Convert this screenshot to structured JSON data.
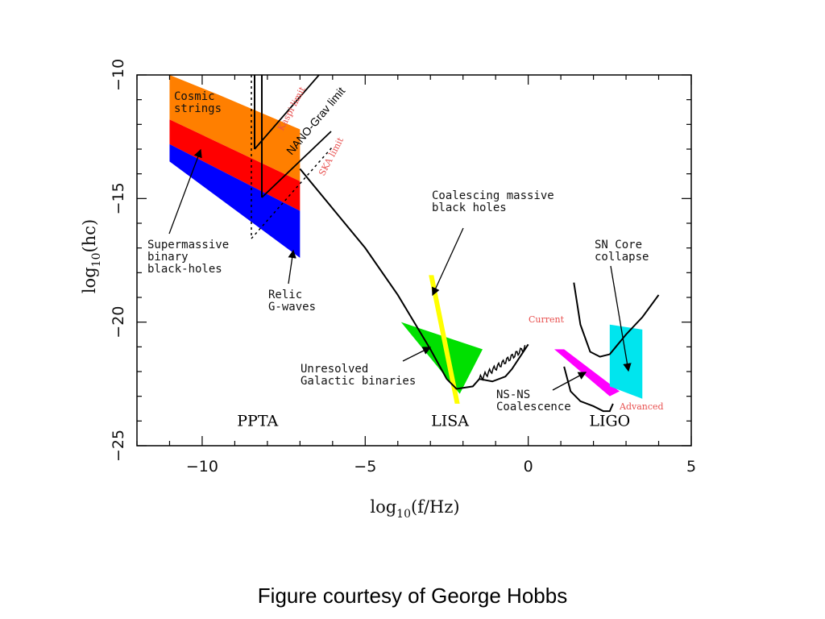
{
  "caption": "Figure courtesy of George Hobbs",
  "chart_data": {
    "type": "area",
    "xlabel": "log10(f/Hz)",
    "ylabel": "log10(hc)",
    "xlim": [
      -12,
      5
    ],
    "ylim": [
      -25,
      -10
    ],
    "xticks": [
      -10,
      -5,
      0,
      5
    ],
    "yticks": [
      -10,
      -15,
      -20,
      -25
    ],
    "grid": false,
    "region_labels": [
      {
        "name": "PPTA",
        "x": -8.3,
        "y": -24.2
      },
      {
        "name": "LISA",
        "x": -2.4,
        "y": -24.2
      },
      {
        "name": "LIGO",
        "x": 2.5,
        "y": -24.2
      }
    ],
    "sources": [
      {
        "name": "Cosmic strings",
        "color": "#ff7f00",
        "polygon": [
          [
            -11,
            -10
          ],
          [
            -9.5,
            -10.8
          ],
          [
            -7,
            -12.2
          ],
          [
            -7,
            -14.3
          ],
          [
            -11,
            -11.8
          ]
        ]
      },
      {
        "name": "Supermassive binary black-holes",
        "color": "#ff0000",
        "polygon": [
          [
            -11,
            -11.8
          ],
          [
            -7,
            -14.3
          ],
          [
            -7,
            -15.5
          ],
          [
            -11,
            -12.8
          ]
        ]
      },
      {
        "name": "Relic G-waves",
        "color": "#0000ff",
        "polygon": [
          [
            -11,
            -12.8
          ],
          [
            -7,
            -15.5
          ],
          [
            -7,
            -17.4
          ],
          [
            -11,
            -13.5
          ]
        ]
      },
      {
        "name": "Unresolved Galactic binaries",
        "color": "#00e000",
        "polygon": [
          [
            -3.9,
            -20
          ],
          [
            -1.4,
            -21.1
          ],
          [
            -2.1,
            -22.9
          ]
        ]
      },
      {
        "name": "Coalescing massive black holes",
        "color": "#ffff00",
        "polygon": [
          [
            -3.05,
            -18.1
          ],
          [
            -2.9,
            -18.1
          ],
          [
            -2.1,
            -23.3
          ],
          [
            -2.25,
            -23.3
          ]
        ]
      },
      {
        "name": "NS-NS Coalescence",
        "color": "#ff00ff",
        "polygon": [
          [
            0.8,
            -21.1
          ],
          [
            1.1,
            -21.1
          ],
          [
            2.8,
            -22.8
          ],
          [
            2.5,
            -23
          ]
        ]
      },
      {
        "name": "SN Core collapse",
        "color": "#00e5ee",
        "polygon": [
          [
            2.5,
            -20.1
          ],
          [
            3.5,
            -20.3
          ],
          [
            3.5,
            -23.1
          ],
          [
            2.5,
            -22.6
          ]
        ]
      }
    ],
    "curves": [
      {
        "name": "LISA sensitivity",
        "points": [
          [
            -7,
            -13.8
          ],
          [
            -6,
            -15.4
          ],
          [
            -5,
            -17
          ],
          [
            -4,
            -18.9
          ],
          [
            -3,
            -21.1
          ],
          [
            -2.5,
            -22.3
          ],
          [
            -2.2,
            -22.7
          ],
          [
            -1.7,
            -22.6
          ],
          [
            -1.5,
            -22.3
          ],
          [
            -1.1,
            -22.4
          ],
          [
            -0.7,
            -22.2
          ],
          [
            -0.5,
            -21.9
          ],
          [
            -0.25,
            -21.4
          ],
          [
            0,
            -20.9
          ]
        ]
      },
      {
        "name": "LIGO current",
        "points": [
          [
            1.4,
            -18.4
          ],
          [
            1.6,
            -20.1
          ],
          [
            1.9,
            -21.2
          ],
          [
            2.2,
            -21.4
          ],
          [
            2.5,
            -21.3
          ],
          [
            3,
            -20.5
          ],
          [
            3.5,
            -19.8
          ],
          [
            4.0,
            -18.9
          ]
        ]
      },
      {
        "name": "LIGO advanced",
        "points": [
          [
            1.1,
            -21.8
          ],
          [
            1.3,
            -22.8
          ],
          [
            1.6,
            -23.2
          ],
          [
            2,
            -23.4
          ],
          [
            2.3,
            -23.6
          ],
          [
            2.5,
            -23.6
          ],
          [
            2.6,
            -23.3
          ]
        ]
      }
    ],
    "limits": [
      {
        "name": "Kaspi limit",
        "label": "Kaspi limit",
        "label_color": "#e8504f"
      },
      {
        "name": "NANO-Grav limit",
        "label": "NANO-Grav limit",
        "label_color": "#000000"
      },
      {
        "name": "SKA limit",
        "label": "SKA limit",
        "label_color": "#e8504f"
      }
    ],
    "annotations": [
      {
        "text": [
          "Cosmic",
          "strings"
        ]
      },
      {
        "text": [
          "Supermassive",
          "binary",
          "black-holes"
        ]
      },
      {
        "text": [
          "Relic",
          "G-waves"
        ]
      },
      {
        "text": [
          "Coalescing massive",
          "black holes"
        ]
      },
      {
        "text": [
          "Unresolved",
          "Galactic binaries"
        ]
      },
      {
        "text": [
          "SN Core",
          "collapse"
        ]
      },
      {
        "text": [
          "NS-NS",
          "Coalescence"
        ]
      },
      {
        "text": [
          "Current"
        ],
        "color": "#e8504f"
      },
      {
        "text": [
          "Advanced"
        ],
        "color": "#e8504f"
      }
    ]
  }
}
